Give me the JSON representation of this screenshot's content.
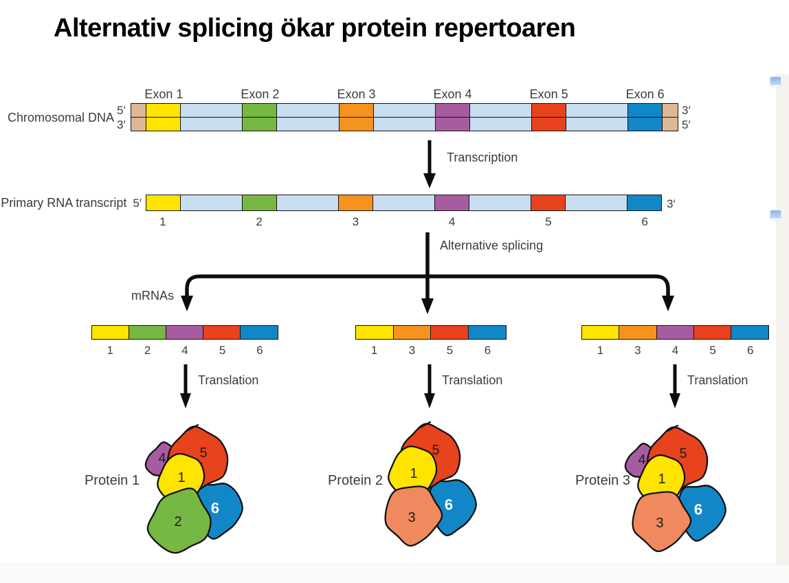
{
  "title": "Alternativ splicing ökar protein repertoaren",
  "palette": {
    "exon_colors": {
      "1": "#FFE400",
      "2": "#76B843",
      "3": "#F6921E",
      "4": "#A85CA0",
      "5": "#E8431D",
      "6": "#1287C8"
    },
    "protein_colors": {
      "1": "#FFE400",
      "2": "#76B843",
      "3": "#F08A5E",
      "4": "#A85CA0",
      "5": "#E8431D",
      "6": "#1287C8"
    },
    "intron": "#C9DDF1",
    "flank": "#DEB896",
    "outline": "#131313",
    "arrow": "#0d0d0d"
  },
  "dna": {
    "label": "Chromosomal DNA",
    "left_top": "5′",
    "left_bottom": "3′",
    "right_top": "3′",
    "right_bottom": "5′",
    "exon_labels": [
      "Exon 1",
      "Exon 2",
      "Exon 3",
      "Exon 4",
      "Exon 5",
      "Exon 6"
    ],
    "exon_order": [
      "1",
      "2",
      "3",
      "4",
      "5",
      "6"
    ]
  },
  "transcription_label": "Transcription",
  "rna": {
    "label": "Primary RNA transcript",
    "left_end": "5′",
    "right_end": "3′",
    "exon_numbers": [
      "1",
      "2",
      "3",
      "4",
      "5",
      "6"
    ]
  },
  "splicing": {
    "label": "Alternative splicing",
    "mrnas_label": "mRNAs"
  },
  "mrnas": [
    {
      "exons": [
        "1",
        "2",
        "4",
        "5",
        "6"
      ]
    },
    {
      "exons": [
        "1",
        "3",
        "5",
        "6"
      ]
    },
    {
      "exons": [
        "1",
        "3",
        "4",
        "5",
        "6"
      ]
    }
  ],
  "translation_label": "Translation",
  "proteins": [
    {
      "label": "Protein 1",
      "subunits": [
        "4",
        "5",
        "1",
        "6",
        "2"
      ]
    },
    {
      "label": "Protein 2",
      "subunits": [
        "5",
        "1",
        "6",
        "3"
      ]
    },
    {
      "label": "Protein 3",
      "subunits": [
        "4",
        "5",
        "1",
        "6",
        "3"
      ]
    }
  ]
}
